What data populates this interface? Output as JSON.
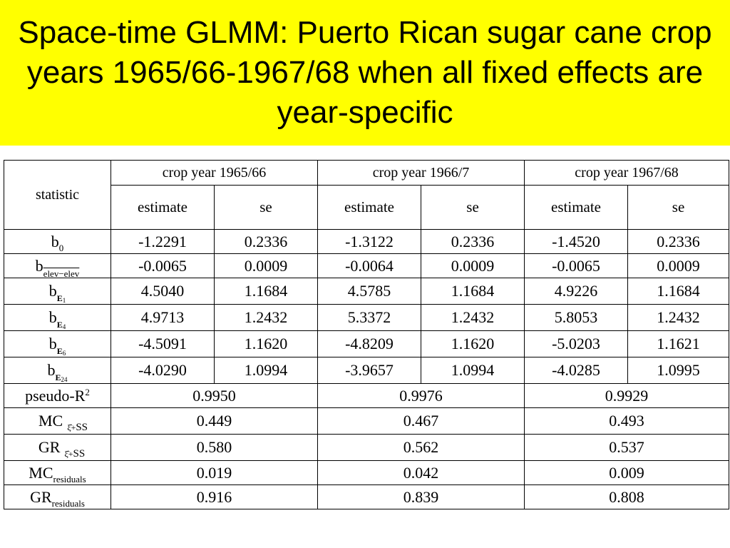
{
  "title": "Space-time GLMM: Puerto Rican sugar cane crop years 1965/66-1967/68 when all fixed effects are year-specific",
  "table": {
    "statistic_label": "statistic",
    "years": [
      "crop year 1965/66",
      "crop year 1966/7",
      "crop year 1967/68"
    ],
    "col_estimate": "estimate",
    "col_se": "se",
    "coef_rows": [
      {
        "base": "b",
        "sub": "0",
        "sub_extra": "",
        "values": [
          "-1.2291",
          "0.2336",
          "-1.3122",
          "0.2336",
          "-1.4520",
          "0.2336"
        ]
      },
      {
        "base": "b",
        "sub": "elev−elev",
        "sub_extra": "",
        "values": [
          "-0.0065",
          "0.0009",
          "-0.0064",
          "0.0009",
          "-0.0065",
          "0.0009"
        ]
      },
      {
        "base": "b",
        "sub": "E",
        "sub_extra": "1",
        "values": [
          "4.5040",
          "1.1684",
          "4.5785",
          "1.1684",
          "4.9226",
          "1.1684"
        ]
      },
      {
        "base": "b",
        "sub": "E",
        "sub_extra": "4",
        "values": [
          "4.9713",
          "1.2432",
          "5.3372",
          "1.2432",
          "5.8053",
          "1.2432"
        ]
      },
      {
        "base": "b",
        "sub": "E",
        "sub_extra": "6",
        "values": [
          "-4.5091",
          "1.1620",
          "-4.8209",
          "1.1620",
          "-5.0203",
          "1.1621"
        ]
      },
      {
        "base": "b",
        "sub": "E",
        "sub_extra": "24",
        "values": [
          "-4.0290",
          "1.0994",
          "-3.9657",
          "1.0994",
          "-4.0285",
          "1.0995"
        ]
      }
    ],
    "pseudo_r2": {
      "label": "pseudo-R",
      "sup": "2",
      "values": [
        "0.9950",
        "0.9976",
        "0.9929"
      ]
    },
    "mc_xi": {
      "label": "MC",
      "xi": "ξ̂+",
      "ss": "SS",
      "values": [
        "0.449",
        "0.467",
        "0.493"
      ]
    },
    "gr_xi": {
      "label": "GR",
      "xi": "ξ̂+",
      "ss": "SS",
      "values": [
        "0.580",
        "0.562",
        "0.537"
      ]
    },
    "mc_res": {
      "label": "MC",
      "sub": "residuals",
      "values": [
        "0.019",
        "0.042",
        "0.009"
      ]
    },
    "gr_res": {
      "label": "GR",
      "sub": "residuals",
      "values": [
        "0.916",
        "0.839",
        "0.808"
      ]
    }
  }
}
